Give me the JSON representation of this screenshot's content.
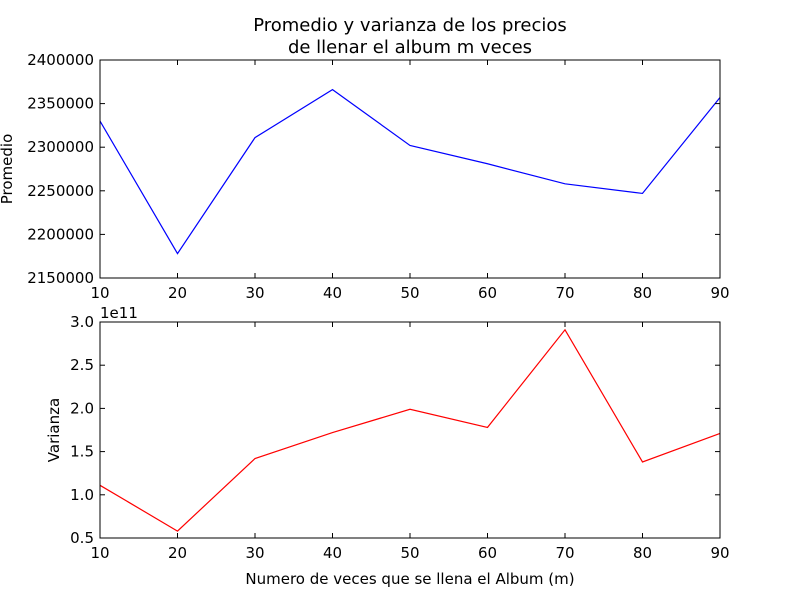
{
  "title_line1": "Promedio y varianza de los precios",
  "title_line2": "de llenar el album m veces",
  "chart_data": [
    {
      "type": "line",
      "ylabel": "Promedio",
      "xlabel": "",
      "x": [
        10,
        20,
        30,
        40,
        50,
        60,
        70,
        80,
        90
      ],
      "xlim": [
        10,
        90
      ],
      "ylim": [
        2150000,
        2400000
      ],
      "xticks": [
        10,
        20,
        30,
        40,
        50,
        60,
        70,
        80,
        90
      ],
      "yticks": [
        2150000,
        2200000,
        2250000,
        2300000,
        2350000,
        2400000
      ],
      "ytick_labels": [
        "2150000",
        "2200000",
        "2250000",
        "2300000",
        "2350000",
        "2400000"
      ],
      "offset_text": "",
      "grid": false,
      "series": [
        {
          "values": [
            2330000,
            2178000,
            2311000,
            2366000,
            2302000,
            2281000,
            2258000,
            2247000,
            2357000
          ],
          "color": "#0000ff"
        }
      ]
    },
    {
      "type": "line",
      "ylabel": "Varianza",
      "xlabel": "Numero de veces que se llena el Album (m)",
      "x": [
        10,
        20,
        30,
        40,
        50,
        60,
        70,
        80,
        90
      ],
      "xlim": [
        10,
        90
      ],
      "ylim": [
        0.5,
        3.0
      ],
      "xticks": [
        10,
        20,
        30,
        40,
        50,
        60,
        70,
        80,
        90
      ],
      "yticks": [
        0.5,
        1.0,
        1.5,
        2.0,
        2.5,
        3.0
      ],
      "ytick_labels": [
        "0.5",
        "1.0",
        "1.5",
        "2.0",
        "2.5",
        "3.0"
      ],
      "offset_text": "1e11",
      "grid": false,
      "series": [
        {
          "values": [
            1.11,
            0.58,
            1.42,
            1.72,
            1.99,
            1.78,
            2.91,
            1.38,
            1.71
          ],
          "color": "#ff0000"
        }
      ]
    }
  ]
}
